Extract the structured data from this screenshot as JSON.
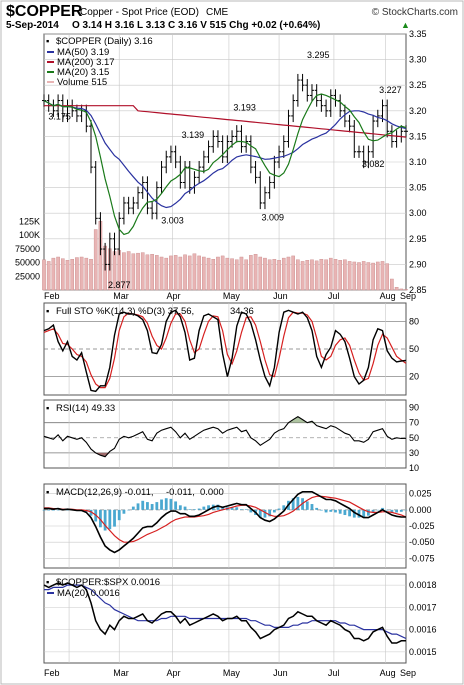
{
  "header": {
    "symbol": "$COPPER",
    "description": "Copper - Spot Price (EOD)",
    "exchange": "CME",
    "brand": "© StockCharts.com",
    "date": "5-Sep-2014",
    "quote": "O 3.14  H 3.16  L 3.13  C 3.16  V 515  Chg +0.02 (+0.64%)",
    "quote_arrow": "▲"
  },
  "colors": {
    "price": "#000000",
    "ma50": "#2a32a0",
    "ma200": "#b0102a",
    "ma20": "#1a7a1a",
    "volume": "#e8b4b4",
    "volume_stroke": "#c98989",
    "fast": "#000000",
    "slow": "#d62020",
    "hist": "#4aa8d0",
    "rsi_fill_low": "#8b4a4a",
    "grid": "#c8c8c8"
  },
  "chart_data": [
    {
      "type": "ohlc",
      "panel": "price",
      "title": "$COPPER (Daily) 3.16",
      "ylim": [
        2.85,
        3.35
      ],
      "y_ticks": [
        "3.35",
        "3.30",
        "3.25",
        "3.20",
        "3.15",
        "3.10",
        "3.05",
        "3.00",
        "2.95",
        "2.90",
        "2.85"
      ],
      "x_tick_labels": [
        "Feb",
        "Mar",
        "Apr",
        "May",
        "Jun",
        "Jul",
        "Aug",
        "Sep"
      ],
      "legend": [
        {
          "key": "ma50",
          "label": "MA(50) 3.19"
        },
        {
          "key": "ma200",
          "label": "MA(200) 3.17"
        },
        {
          "key": "ma20",
          "label": "MA(20) 3.15"
        },
        {
          "key": "volume",
          "label": "Volume 515"
        }
      ],
      "annotations": [
        {
          "text": "3.175",
          "x": 10,
          "y": 3.175
        },
        {
          "text": "2.877",
          "x": 48,
          "y": 2.877
        },
        {
          "text": "3.003",
          "x": 82,
          "y": 3.003
        },
        {
          "text": "3.139",
          "x": 95,
          "y": 3.139
        },
        {
          "text": "3.193",
          "x": 128,
          "y": 3.193
        },
        {
          "text": "3.009",
          "x": 146,
          "y": 3.009
        },
        {
          "text": "3.295",
          "x": 175,
          "y": 3.295
        },
        {
          "text": "3.227",
          "x": 221,
          "y": 3.227
        },
        {
          "text": "3.082",
          "x": 210,
          "y": 3.082
        }
      ],
      "x": [
        0,
        3,
        6,
        9,
        12,
        15,
        18,
        21,
        24,
        27,
        30,
        33,
        36,
        39,
        42,
        45,
        48,
        51,
        54,
        57,
        60,
        63,
        66,
        69,
        72,
        75,
        78,
        81,
        84,
        87,
        90,
        93,
        96,
        99,
        102,
        105,
        108,
        111,
        114,
        117,
        120,
        123,
        126,
        129,
        132,
        135,
        138,
        141,
        144,
        147,
        150,
        153,
        156,
        159,
        162,
        165,
        168,
        171,
        174,
        177,
        180,
        183,
        186,
        189,
        192,
        195,
        198,
        201,
        204,
        207,
        210,
        213,
        216,
        219,
        222,
        225,
        228,
        231
      ],
      "close": [
        3.22,
        3.21,
        3.2,
        3.22,
        3.19,
        3.21,
        3.2,
        3.19,
        3.2,
        3.17,
        3.09,
        2.99,
        2.93,
        2.9,
        2.95,
        2.93,
        2.99,
        3.02,
        3.01,
        3.02,
        3.04,
        3.06,
        3.01,
        3.0,
        3.05,
        3.09,
        3.11,
        3.12,
        3.1,
        3.06,
        3.09,
        3.05,
        3.07,
        3.09,
        3.11,
        3.13,
        3.15,
        3.14,
        3.11,
        3.14,
        3.15,
        3.16,
        3.13,
        3.14,
        3.09,
        3.07,
        3.02,
        3.04,
        3.06,
        3.1,
        3.12,
        3.14,
        3.19,
        3.22,
        3.26,
        3.25,
        3.23,
        3.24,
        3.22,
        3.21,
        3.2,
        3.23,
        3.22,
        3.2,
        3.18,
        3.17,
        3.12,
        3.12,
        3.1,
        3.12,
        3.18,
        3.19,
        3.21,
        3.16,
        3.14,
        3.15,
        3.16,
        3.16
      ],
      "volume_k": [
        55,
        52,
        58,
        60,
        57,
        54,
        56,
        59,
        60,
        58,
        56,
        110,
        125,
        80,
        75,
        70,
        72,
        68,
        70,
        66,
        67,
        68,
        64,
        65,
        63,
        60,
        58,
        62,
        63,
        60,
        64,
        62,
        66,
        62,
        60,
        58,
        56,
        60,
        62,
        58,
        57,
        55,
        60,
        55,
        63,
        65,
        60,
        58,
        55,
        56,
        54,
        58,
        60,
        62,
        55,
        52,
        54,
        55,
        53,
        56,
        55,
        58,
        56,
        54,
        55,
        52,
        51,
        50,
        52,
        50,
        49,
        51,
        52,
        48,
        20,
        5,
        2,
        1
      ],
      "vol_labels": [
        "125K",
        "100K",
        "75000",
        "50000",
        "25000"
      ],
      "vol_label_values": [
        125,
        100,
        75,
        50,
        25
      ]
    },
    {
      "type": "line",
      "panel": "sto",
      "title": "Full STO %K(14,3) %D(3) 37.56,",
      "title_red": "34.36",
      "ylim": [
        0,
        100
      ],
      "y_ticks": [
        80,
        50,
        20
      ],
      "fastK": [
        70,
        72,
        76,
        58,
        48,
        58,
        42,
        38,
        46,
        25,
        5,
        4,
        10,
        10,
        30,
        65,
        88,
        90,
        88,
        88,
        86,
        82,
        70,
        46,
        45,
        55,
        80,
        90,
        92,
        85,
        68,
        38,
        40,
        70,
        86,
        88,
        85,
        82,
        45,
        20,
        40,
        75,
        90,
        88,
        78,
        60,
        38,
        20,
        10,
        30,
        68,
        90,
        92,
        90,
        88,
        90,
        84,
        70,
        42,
        30,
        44,
        52,
        70,
        66,
        58,
        40,
        20,
        12,
        16,
        30,
        60,
        72,
        70,
        48,
        40,
        36,
        37,
        37.56
      ],
      "slowD": [
        68,
        70,
        72,
        66,
        56,
        55,
        50,
        44,
        42,
        36,
        22,
        12,
        8,
        8,
        18,
        40,
        70,
        85,
        89,
        88,
        87,
        85,
        78,
        64,
        54,
        50,
        62,
        78,
        88,
        88,
        80,
        60,
        46,
        50,
        66,
        80,
        86,
        85,
        70,
        44,
        34,
        48,
        68,
        84,
        85,
        76,
        58,
        38,
        22,
        20,
        40,
        64,
        84,
        90,
        89,
        89,
        87,
        80,
        62,
        42,
        38,
        42,
        54,
        60,
        62,
        54,
        38,
        24,
        16,
        18,
        34,
        54,
        66,
        62,
        52,
        42,
        38,
        34.36
      ]
    },
    {
      "type": "line",
      "panel": "rsi",
      "title": "RSI(14) 49.33",
      "ylim": [
        10,
        100
      ],
      "y_ticks": [
        90,
        70,
        50,
        30,
        10
      ],
      "rsi": [
        52,
        50,
        48,
        54,
        46,
        52,
        50,
        48,
        50,
        44,
        35,
        30,
        27,
        25,
        32,
        36,
        48,
        52,
        50,
        52,
        55,
        58,
        48,
        46,
        56,
        60,
        62,
        64,
        58,
        50,
        56,
        48,
        52,
        56,
        60,
        62,
        64,
        62,
        56,
        60,
        62,
        64,
        58,
        60,
        50,
        46,
        40,
        44,
        48,
        56,
        60,
        62,
        70,
        74,
        78,
        74,
        70,
        72,
        66,
        64,
        62,
        66,
        64,
        60,
        56,
        54,
        46,
        46,
        44,
        48,
        58,
        60,
        62,
        52,
        48,
        50,
        49,
        49.33
      ]
    },
    {
      "type": "line",
      "panel": "macd",
      "title": "MACD(12,26,9) -0.011,",
      "title_red": "-0.011,",
      "title_blue": "0.000",
      "ylim": [
        -0.09,
        0.04
      ],
      "y_ticks": [
        "0.025",
        "0.000",
        "-0.025",
        "-0.050",
        "-0.075"
      ],
      "y_tick_values": [
        0.025,
        0.0,
        -0.025,
        -0.05,
        -0.075
      ],
      "macd": [
        0.002,
        0.002,
        0.001,
        0.002,
        0.0,
        0.001,
        0.0,
        -0.001,
        -0.001,
        -0.004,
        -0.012,
        -0.026,
        -0.042,
        -0.056,
        -0.062,
        -0.066,
        -0.062,
        -0.056,
        -0.05,
        -0.044,
        -0.036,
        -0.028,
        -0.026,
        -0.026,
        -0.02,
        -0.012,
        -0.006,
        -0.002,
        -0.002,
        -0.006,
        -0.006,
        -0.01,
        -0.01,
        -0.008,
        -0.004,
        0.0,
        0.004,
        0.006,
        0.004,
        0.006,
        0.008,
        0.01,
        0.008,
        0.008,
        0.002,
        -0.004,
        -0.012,
        -0.016,
        -0.018,
        -0.014,
        -0.008,
        -0.002,
        0.008,
        0.016,
        0.024,
        0.028,
        0.028,
        0.028,
        0.024,
        0.02,
        0.016,
        0.016,
        0.014,
        0.01,
        0.006,
        0.002,
        -0.004,
        -0.008,
        -0.012,
        -0.012,
        -0.008,
        -0.004,
        0.0,
        -0.004,
        -0.008,
        -0.01,
        -0.011,
        -0.011
      ],
      "signal": [
        0.003,
        0.003,
        0.002,
        0.002,
        0.001,
        0.001,
        0.001,
        0.0,
        0.0,
        -0.001,
        -0.003,
        -0.008,
        -0.015,
        -0.024,
        -0.032,
        -0.04,
        -0.046,
        -0.05,
        -0.05,
        -0.049,
        -0.046,
        -0.042,
        -0.038,
        -0.035,
        -0.032,
        -0.028,
        -0.024,
        -0.019,
        -0.015,
        -0.013,
        -0.011,
        -0.011,
        -0.011,
        -0.01,
        -0.009,
        -0.007,
        -0.004,
        -0.002,
        0.0,
        0.002,
        0.004,
        0.006,
        0.007,
        0.007,
        0.006,
        0.004,
        0.0,
        -0.004,
        -0.008,
        -0.01,
        -0.01,
        -0.009,
        -0.006,
        -0.002,
        0.004,
        0.01,
        0.015,
        0.019,
        0.021,
        0.021,
        0.02,
        0.019,
        0.018,
        0.016,
        0.014,
        0.012,
        0.008,
        0.004,
        0.0,
        -0.003,
        -0.004,
        -0.004,
        -0.003,
        -0.003,
        -0.004,
        -0.006,
        -0.008,
        -0.011
      ]
    },
    {
      "type": "line",
      "panel": "ratio",
      "title": "$COPPER:$SPX 0.0016",
      "ma_label": "MA(20) 0.0016",
      "ylim": [
        0.00145,
        0.00185
      ],
      "y_ticks": [
        "0.0018",
        "0.0017",
        "0.0016",
        "0.0015"
      ],
      "y_tick_values": [
        0.0018,
        0.0017,
        0.0016,
        0.0015
      ],
      "ratio": [
        0.0018,
        0.00179,
        0.0018,
        0.00181,
        0.0018,
        0.00181,
        0.0018,
        0.00179,
        0.0018,
        0.00178,
        0.00172,
        0.00164,
        0.0016,
        0.00158,
        0.00162,
        0.0016,
        0.00164,
        0.00166,
        0.00165,
        0.00165,
        0.00166,
        0.00167,
        0.00164,
        0.00163,
        0.00165,
        0.00167,
        0.00168,
        0.00168,
        0.00166,
        0.00163,
        0.00165,
        0.00162,
        0.00163,
        0.00164,
        0.00165,
        0.00166,
        0.00167,
        0.00166,
        0.00164,
        0.00165,
        0.00165,
        0.00166,
        0.00164,
        0.00164,
        0.00161,
        0.00159,
        0.00156,
        0.00157,
        0.00158,
        0.0016,
        0.00161,
        0.00162,
        0.00165,
        0.00166,
        0.00168,
        0.00167,
        0.00166,
        0.00166,
        0.00164,
        0.00163,
        0.00162,
        0.00164,
        0.00163,
        0.00162,
        0.0016,
        0.00159,
        0.00156,
        0.00156,
        0.00155,
        0.00156,
        0.00159,
        0.0016,
        0.00161,
        0.00157,
        0.00154,
        0.00154,
        0.00155,
        0.00155
      ],
      "ma20": [
        0.00178,
        0.00178,
        0.00179,
        0.00179,
        0.00179,
        0.0018,
        0.0018,
        0.0018,
        0.0018,
        0.00179,
        0.00178,
        0.00176,
        0.00174,
        0.00172,
        0.00171,
        0.00169,
        0.00168,
        0.00167,
        0.00166,
        0.00165,
        0.00164,
        0.00164,
        0.00164,
        0.00164,
        0.00164,
        0.00165,
        0.00165,
        0.00166,
        0.00166,
        0.00166,
        0.00166,
        0.00165,
        0.00165,
        0.00165,
        0.00165,
        0.00165,
        0.00165,
        0.00165,
        0.00165,
        0.00165,
        0.00165,
        0.00165,
        0.00165,
        0.00165,
        0.00164,
        0.00164,
        0.00163,
        0.00162,
        0.00162,
        0.00161,
        0.00161,
        0.00161,
        0.00161,
        0.00162,
        0.00162,
        0.00163,
        0.00163,
        0.00164,
        0.00164,
        0.00164,
        0.00164,
        0.00164,
        0.00164,
        0.00163,
        0.00163,
        0.00162,
        0.00162,
        0.00161,
        0.0016,
        0.0016,
        0.0016,
        0.0016,
        0.0016,
        0.00159,
        0.00158,
        0.00158,
        0.00157,
        0.00156
      ]
    }
  ]
}
